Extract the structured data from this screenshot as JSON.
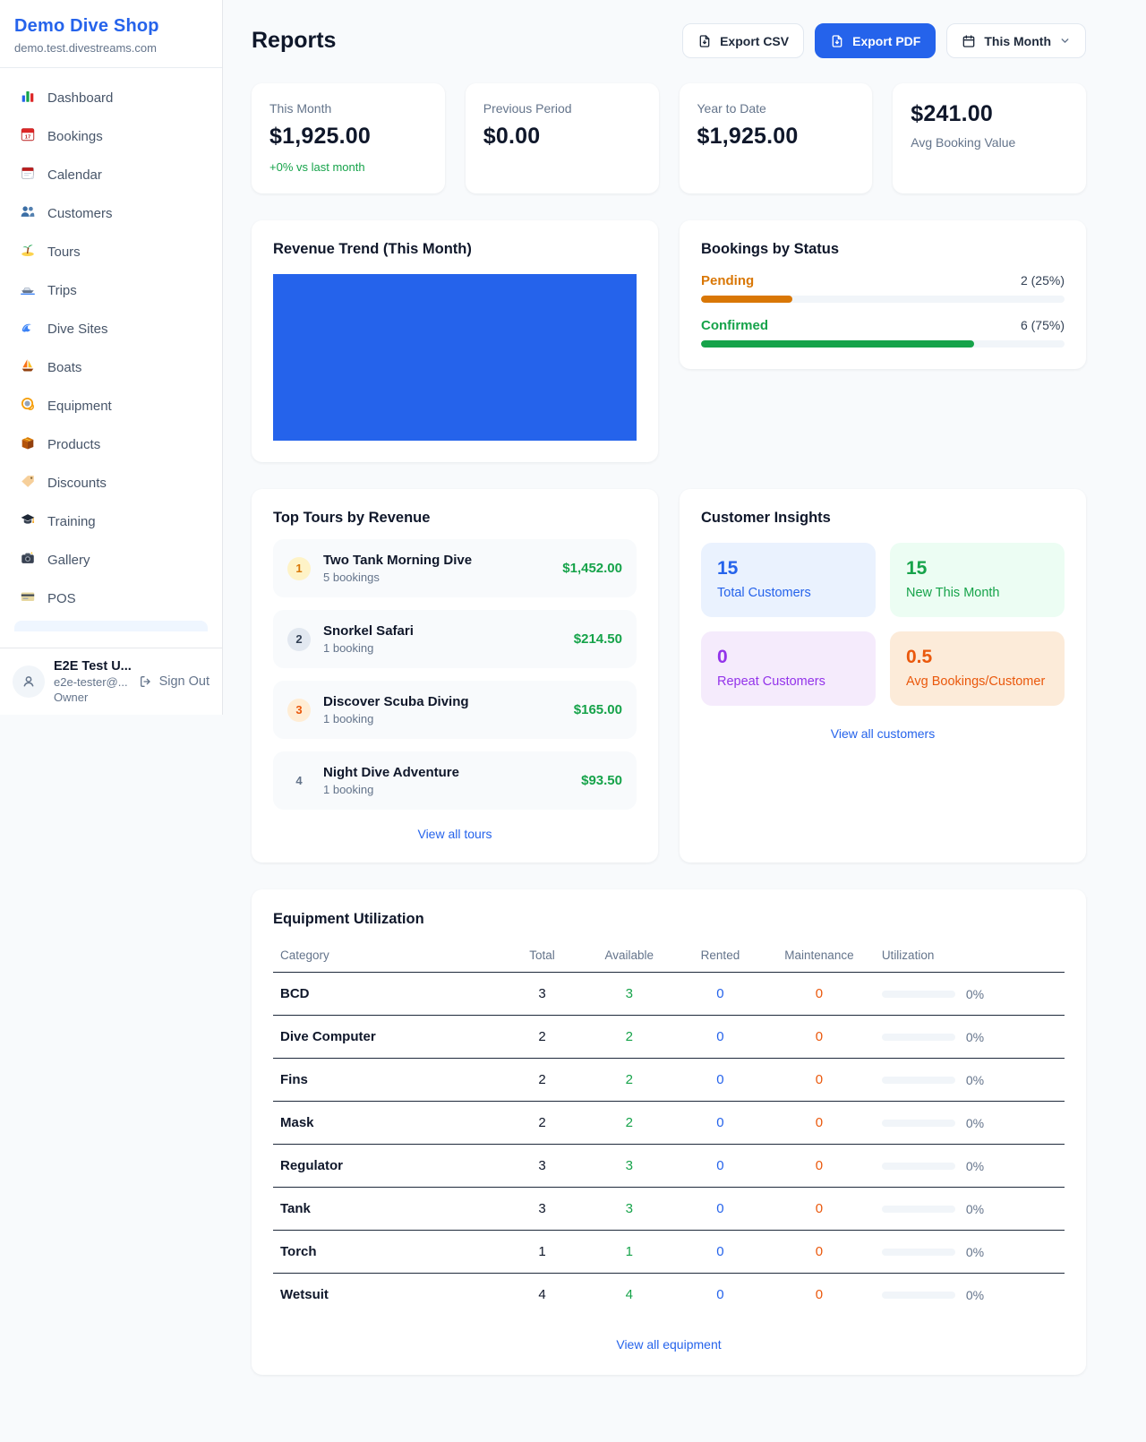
{
  "colors": {
    "accent_blue": "#2563eb",
    "chart_blue": "#2563eb",
    "success_green": "#16a34a",
    "pending_orange": "#d97706",
    "warning_orange": "#ea580c",
    "purple": "#9333ea"
  },
  "sidebar": {
    "shop_name": "Demo Dive Shop",
    "shop_domain": "demo.test.divestreams.com",
    "nav": [
      {
        "icon": "bar-chart",
        "label": "Dashboard"
      },
      {
        "icon": "calendar-date",
        "label": "Bookings"
      },
      {
        "icon": "calendar-pad",
        "label": "Calendar"
      },
      {
        "icon": "people",
        "label": "Customers"
      },
      {
        "icon": "island",
        "label": "Tours"
      },
      {
        "icon": "motorboat",
        "label": "Trips"
      },
      {
        "icon": "wave",
        "label": "Dive Sites"
      },
      {
        "icon": "sailboat",
        "label": "Boats"
      },
      {
        "icon": "dive-mask",
        "label": "Equipment"
      },
      {
        "icon": "package",
        "label": "Products"
      },
      {
        "icon": "tag",
        "label": "Discounts"
      },
      {
        "icon": "grad-cap",
        "label": "Training"
      },
      {
        "icon": "camera",
        "label": "Gallery"
      },
      {
        "icon": "credit-card",
        "label": "POS"
      }
    ],
    "user": {
      "name": "E2E Test U...",
      "email": "e2e-tester@...",
      "role": "Owner",
      "sign_out_label": "Sign Out"
    }
  },
  "header": {
    "title": "Reports",
    "export_csv_label": "Export CSV",
    "export_pdf_label": "Export PDF",
    "period_label": "This Month"
  },
  "stats": [
    {
      "label": "This Month",
      "value": "$1,925.00",
      "delta": "+0% vs last month"
    },
    {
      "label": "Previous Period",
      "value": "$0.00"
    },
    {
      "label": "Year to Date",
      "value": "$1,925.00"
    },
    {
      "label": "Avg Booking Value",
      "value": "$241.00"
    }
  ],
  "revenue_trend": {
    "title": "Revenue Trend (This Month)"
  },
  "bookings_by_status": {
    "title": "Bookings by Status",
    "rows": [
      {
        "label": "Pending",
        "count_text": "2 (25%)",
        "count": 2,
        "pct": 25,
        "color": "#d97706"
      },
      {
        "label": "Confirmed",
        "count_text": "6 (75%)",
        "count": 6,
        "pct": 75,
        "color": "#16a34a"
      }
    ]
  },
  "top_tours": {
    "title": "Top Tours by Revenue",
    "items": [
      {
        "rank": "1",
        "name": "Two Tank Morning Dive",
        "bookings": "5 bookings",
        "revenue": "$1,452.00"
      },
      {
        "rank": "2",
        "name": "Snorkel Safari",
        "bookings": "1 booking",
        "revenue": "$214.50"
      },
      {
        "rank": "3",
        "name": "Discover Scuba Diving",
        "bookings": "1 booking",
        "revenue": "$165.00"
      },
      {
        "rank": "4",
        "name": "Night Dive Adventure",
        "bookings": "1 booking",
        "revenue": "$93.50"
      }
    ],
    "view_all_label": "View all tours"
  },
  "customer_insights": {
    "title": "Customer Insights",
    "cells": [
      {
        "value": "15",
        "label": "Total Customers",
        "color": "#2563eb"
      },
      {
        "value": "15",
        "label": "New This Month",
        "color": "#16a34a"
      },
      {
        "value": "0",
        "label": "Repeat Customers",
        "color": "#9333ea"
      },
      {
        "value": "0.5",
        "label": "Avg Bookings/Customer",
        "color": "#ea580c"
      }
    ],
    "view_all_label": "View all customers"
  },
  "equipment": {
    "title": "Equipment Utilization",
    "columns": [
      "Category",
      "Total",
      "Available",
      "Rented",
      "Maintenance",
      "Utilization"
    ],
    "rows": [
      {
        "category": "BCD",
        "total": "3",
        "available": "3",
        "rented": "0",
        "maintenance": "0",
        "utilization_text": "0%",
        "utilization_pct": 0
      },
      {
        "category": "Dive Computer",
        "total": "2",
        "available": "2",
        "rented": "0",
        "maintenance": "0",
        "utilization_text": "0%",
        "utilization_pct": 0
      },
      {
        "category": "Fins",
        "total": "2",
        "available": "2",
        "rented": "0",
        "maintenance": "0",
        "utilization_text": "0%",
        "utilization_pct": 0
      },
      {
        "category": "Mask",
        "total": "2",
        "available": "2",
        "rented": "0",
        "maintenance": "0",
        "utilization_text": "0%",
        "utilization_pct": 0
      },
      {
        "category": "Regulator",
        "total": "3",
        "available": "3",
        "rented": "0",
        "maintenance": "0",
        "utilization_text": "0%",
        "utilization_pct": 0
      },
      {
        "category": "Tank",
        "total": "3",
        "available": "3",
        "rented": "0",
        "maintenance": "0",
        "utilization_text": "0%",
        "utilization_pct": 0
      },
      {
        "category": "Torch",
        "total": "1",
        "available": "1",
        "rented": "0",
        "maintenance": "0",
        "utilization_text": "0%",
        "utilization_pct": 0
      },
      {
        "category": "Wetsuit",
        "total": "4",
        "available": "4",
        "rented": "0",
        "maintenance": "0",
        "utilization_text": "0%",
        "utilization_pct": 0
      }
    ],
    "view_all_label": "View all equipment"
  },
  "chart_data": [
    {
      "type": "bar",
      "title": "Revenue Trend (This Month)",
      "categories": [
        "This Month"
      ],
      "values": [
        1925
      ],
      "xlabel": "",
      "ylabel": "",
      "notes": "single full-width solid blue bar filling the plot area; no axes, ticks or labels visible",
      "bar_color": "#2563eb"
    },
    {
      "type": "bar",
      "title": "Bookings by Status",
      "categories": [
        "Pending",
        "Confirmed"
      ],
      "values": [
        2,
        6
      ],
      "percentages": [
        25,
        75
      ],
      "orientation": "horizontal",
      "colors": [
        "#d97706",
        "#16a34a"
      ],
      "xlim": [
        0,
        100
      ]
    },
    {
      "type": "bar",
      "title": "Equipment Utilization (%)",
      "categories": [
        "BCD",
        "Dive Computer",
        "Fins",
        "Mask",
        "Regulator",
        "Tank",
        "Torch",
        "Wetsuit"
      ],
      "values": [
        0,
        0,
        0,
        0,
        0,
        0,
        0,
        0
      ],
      "orientation": "horizontal",
      "xlim": [
        0,
        100
      ]
    }
  ]
}
